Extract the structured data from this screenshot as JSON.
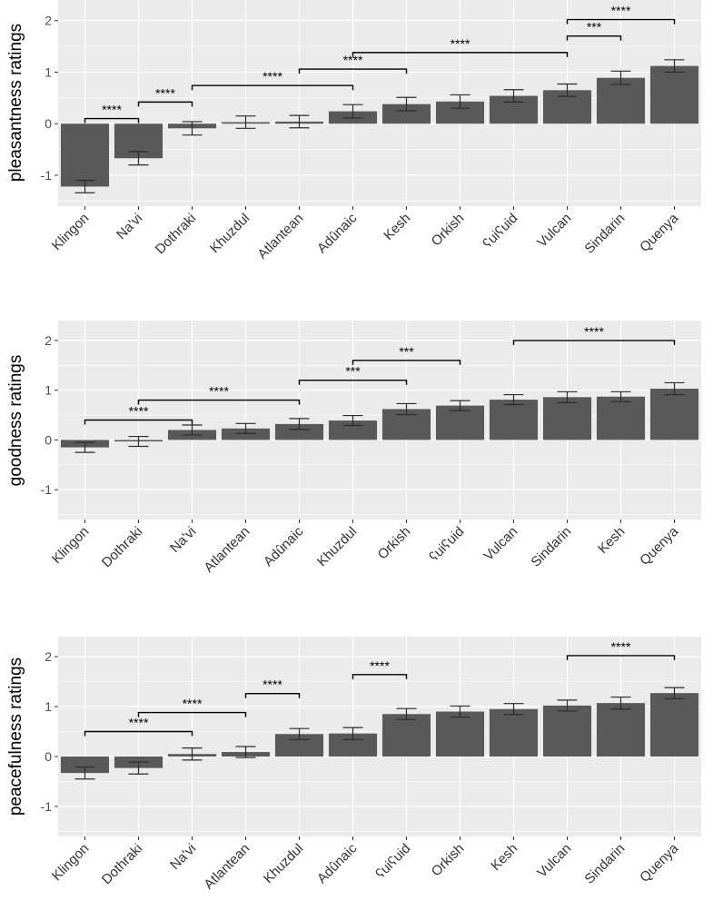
{
  "colors": {
    "panel": "#ebebeb",
    "grid": "#ffffff",
    "bar": "#595959",
    "errorbar": "#2b2b2b",
    "bracket": "#000000"
  },
  "chart_data": [
    {
      "type": "bar",
      "ylabel": "pleasantness ratings",
      "ylim": [
        -1.6,
        2.4
      ],
      "yticks": [
        -1,
        0,
        1,
        2
      ],
      "ytick_labels": [
        "-1",
        "0",
        "1",
        "2"
      ],
      "grid": true,
      "categories": [
        "Klingon",
        "Na'vi",
        "Dothraki",
        "Khuzdul",
        "Atlantean",
        "Adûnaic",
        "Kesh",
        "Orkish",
        "ʕuiʕuid",
        "Vulcan",
        "Sindarin",
        "Quenya"
      ],
      "values": [
        -1.22,
        -0.67,
        -0.09,
        0.03,
        0.04,
        0.24,
        0.38,
        0.43,
        0.54,
        0.65,
        0.89,
        1.12
      ],
      "errors": [
        0.12,
        0.13,
        0.13,
        0.12,
        0.12,
        0.13,
        0.13,
        0.13,
        0.12,
        0.12,
        0.13,
        0.12
      ],
      "significance": [
        {
          "from": 0,
          "to": 1,
          "y": 0.1,
          "label": "****"
        },
        {
          "from": 1,
          "to": 2,
          "y": 0.42,
          "label": "****"
        },
        {
          "from": 2,
          "to": 5,
          "y": 0.74,
          "label": "****"
        },
        {
          "from": 4,
          "to": 6,
          "y": 1.06,
          "label": "****"
        },
        {
          "from": 5,
          "to": 9,
          "y": 1.38,
          "label": "****"
        },
        {
          "from": 9,
          "to": 10,
          "y": 1.7,
          "label": "***"
        },
        {
          "from": 9,
          "to": 11,
          "y": 2.02,
          "label": "****"
        }
      ]
    },
    {
      "type": "bar",
      "ylabel": "goodness ratings",
      "ylim": [
        -1.6,
        2.4
      ],
      "yticks": [
        -1,
        0,
        1,
        2
      ],
      "ytick_labels": [
        "-1",
        "0",
        "1",
        "2"
      ],
      "grid": true,
      "categories": [
        "Klingon",
        "Dothraki",
        "Na'vi",
        "Atlantean",
        "Adûnaic",
        "Khuzdul",
        "Orkish",
        "ʕuiʕuid",
        "Vulcan",
        "Sindarin",
        "Kesh",
        "Quenya"
      ],
      "values": [
        -0.15,
        -0.03,
        0.2,
        0.23,
        0.32,
        0.39,
        0.62,
        0.69,
        0.81,
        0.86,
        0.87,
        1.03
      ],
      "errors": [
        0.1,
        0.1,
        0.1,
        0.1,
        0.11,
        0.1,
        0.11,
        0.1,
        0.1,
        0.11,
        0.1,
        0.12
      ],
      "significance": [
        {
          "from": 0,
          "to": 2,
          "y": 0.4,
          "label": "****"
        },
        {
          "from": 1,
          "to": 4,
          "y": 0.8,
          "label": "****"
        },
        {
          "from": 4,
          "to": 6,
          "y": 1.2,
          "label": "***"
        },
        {
          "from": 5,
          "to": 7,
          "y": 1.6,
          "label": "***"
        },
        {
          "from": 8,
          "to": 11,
          "y": 2.0,
          "label": "****"
        }
      ]
    },
    {
      "type": "bar",
      "ylabel": "peacefulness ratings",
      "ylim": [
        -1.6,
        2.4
      ],
      "yticks": [
        -1,
        0,
        1,
        2
      ],
      "ytick_labels": [
        "-1",
        "0",
        "1",
        "2"
      ],
      "grid": true,
      "categories": [
        "Klingon",
        "Dothraki",
        "Na'vi",
        "Atlantean",
        "Khuzdul",
        "Adûnaic",
        "ʕuiʕuid",
        "Orkish",
        "Kesh",
        "Vulcan",
        "Sindarin",
        "Quenya"
      ],
      "values": [
        -0.33,
        -0.23,
        0.05,
        0.09,
        0.45,
        0.46,
        0.85,
        0.9,
        0.95,
        1.02,
        1.07,
        1.27
      ],
      "errors": [
        0.12,
        0.12,
        0.12,
        0.11,
        0.11,
        0.12,
        0.11,
        0.11,
        0.11,
        0.11,
        0.12,
        0.11
      ],
      "significance": [
        {
          "from": 0,
          "to": 2,
          "y": 0.5,
          "label": "****"
        },
        {
          "from": 1,
          "to": 3,
          "y": 0.88,
          "label": "****"
        },
        {
          "from": 3,
          "to": 4,
          "y": 1.26,
          "label": "****"
        },
        {
          "from": 5,
          "to": 6,
          "y": 1.64,
          "label": "****"
        },
        {
          "from": 9,
          "to": 11,
          "y": 2.02,
          "label": "****"
        }
      ]
    }
  ]
}
